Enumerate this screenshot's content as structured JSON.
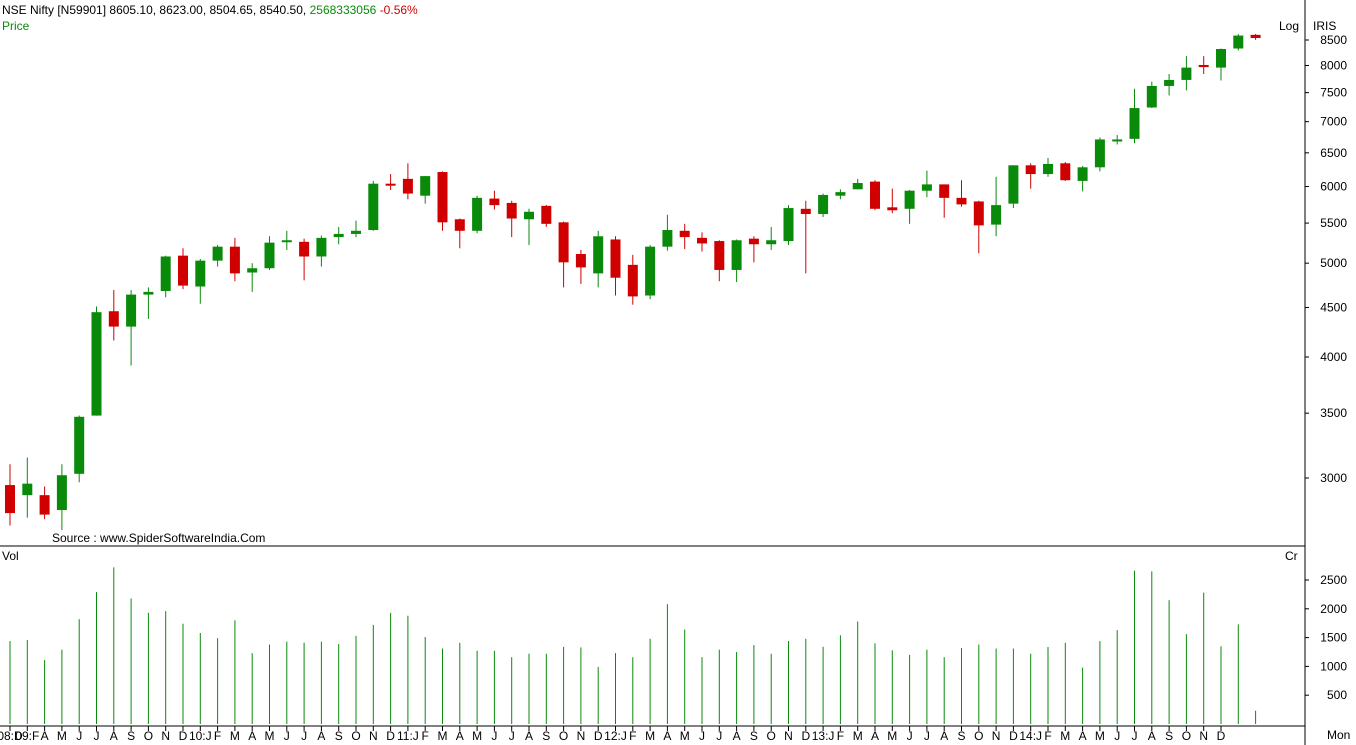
{
  "header": {
    "symbol": "NSE Nifty [N59901]",
    "ohlc": "8605.10, 8623.00, 8504.65, 8540.50,",
    "volume": "2568333056",
    "change": "-0.56%",
    "price_label": "Price",
    "log_label": "Log",
    "iris_label": "IRIS",
    "vol_label": "Vol",
    "cr_label": "Cr",
    "period_label": "Mon",
    "source": "Source : www.SpiderSoftwareIndia.Com"
  },
  "colors": {
    "up": "#0a8a0a",
    "down": "#d00000",
    "volume": "#0a8a0a",
    "axis": "#000000"
  },
  "chart_data": [
    {
      "type": "candlestick",
      "scale": "log",
      "ylim": [
        2600,
        8850
      ],
      "yticks": [
        3000,
        3500,
        4000,
        4500,
        5000,
        5500,
        6000,
        6500,
        7000,
        7500,
        8000,
        8500
      ],
      "xticklabels": [
        "08:D",
        "09:F",
        "A",
        "M",
        "J",
        "J",
        "A",
        "S",
        "O",
        "N",
        "D",
        "10:J",
        "F",
        "M",
        "A",
        "M",
        "J",
        "J",
        "A",
        "S",
        "O",
        "N",
        "D",
        "11:J",
        "F",
        "M",
        "A",
        "M",
        "J",
        "J",
        "A",
        "S",
        "O",
        "N",
        "D",
        "12:J",
        "F",
        "M",
        "A",
        "M",
        "J",
        "J",
        "A",
        "S",
        "O",
        "N",
        "D",
        "13:J",
        "F",
        "M",
        "A",
        "M",
        "J",
        "J",
        "A",
        "S",
        "O",
        "N",
        "D",
        "14:J",
        "F",
        "M",
        "A",
        "M",
        "J",
        "J",
        "A",
        "S",
        "O",
        "N",
        "D"
      ],
      "candles": [
        [
          2950,
          3100,
          2680,
          2760
        ],
        [
          2880,
          3150,
          2730,
          2960
        ],
        [
          2880,
          2940,
          2720,
          2750
        ],
        [
          2780,
          3100,
          2650,
          3020
        ],
        [
          3030,
          3480,
          2970,
          3470
        ],
        [
          3480,
          4510,
          3480,
          4450
        ],
        [
          4460,
          4690,
          4160,
          4300
        ],
        [
          4300,
          4690,
          3920,
          4640
        ],
        [
          4640,
          4720,
          4380,
          4670
        ],
        [
          4680,
          5090,
          4610,
          5080
        ],
        [
          5090,
          5180,
          4700,
          4740
        ],
        [
          4730,
          5050,
          4540,
          5030
        ],
        [
          5030,
          5220,
          4960,
          5200
        ],
        [
          5200,
          5310,
          4790,
          4880
        ],
        [
          4890,
          5000,
          4670,
          4940
        ],
        [
          4940,
          5330,
          4920,
          5250
        ],
        [
          5260,
          5400,
          5160,
          5280
        ],
        [
          5260,
          5300,
          4800,
          5080
        ],
        [
          5080,
          5340,
          4960,
          5310
        ],
        [
          5320,
          5450,
          5230,
          5360
        ],
        [
          5360,
          5530,
          5320,
          5400
        ],
        [
          5410,
          6080,
          5400,
          6040
        ],
        [
          6040,
          6180,
          5950,
          6030
        ],
        [
          6110,
          6340,
          5820,
          5900
        ],
        [
          5870,
          6150,
          5760,
          6150
        ],
        [
          6210,
          6220,
          5400,
          5510
        ],
        [
          5550,
          5560,
          5180,
          5400
        ],
        [
          5400,
          5870,
          5370,
          5840
        ],
        [
          5830,
          5940,
          5680,
          5740
        ],
        [
          5770,
          5800,
          5320,
          5560
        ],
        [
          5550,
          5690,
          5220,
          5650
        ],
        [
          5730,
          5740,
          5450,
          5490
        ],
        [
          5510,
          5520,
          4720,
          5010
        ],
        [
          5110,
          5160,
          4760,
          4950
        ],
        [
          4880,
          5400,
          4720,
          5330
        ],
        [
          5290,
          5330,
          4630,
          4830
        ],
        [
          4980,
          5100,
          4530,
          4620
        ],
        [
          4630,
          5220,
          4590,
          5200
        ],
        [
          5200,
          5610,
          5150,
          5410
        ],
        [
          5400,
          5490,
          5170,
          5320
        ],
        [
          5310,
          5380,
          5140,
          5240
        ],
        [
          5270,
          5280,
          4790,
          4920
        ],
        [
          4920,
          5290,
          4780,
          5280
        ],
        [
          5300,
          5330,
          5010,
          5230
        ],
        [
          5230,
          5450,
          5160,
          5280
        ],
        [
          5270,
          5740,
          5220,
          5700
        ],
        [
          5690,
          5800,
          4880,
          5620
        ],
        [
          5620,
          5900,
          5580,
          5880
        ],
        [
          5870,
          5960,
          5820,
          5920
        ],
        [
          5960,
          6110,
          5960,
          6050
        ],
        [
          6070,
          6090,
          5670,
          5690
        ],
        [
          5710,
          5970,
          5630,
          5670
        ],
        [
          5690,
          5950,
          5490,
          5940
        ],
        [
          5940,
          6230,
          5850,
          6030
        ],
        [
          6030,
          6030,
          5570,
          5840
        ],
        [
          5840,
          6090,
          5720,
          5750
        ],
        [
          5790,
          5800,
          5120,
          5470
        ],
        [
          5480,
          6140,
          5330,
          5740
        ],
        [
          5760,
          6310,
          5700,
          6310
        ],
        [
          6310,
          6340,
          5970,
          6180
        ],
        [
          6180,
          6420,
          6140,
          6330
        ],
        [
          6340,
          6360,
          6080,
          6090
        ],
        [
          6080,
          6300,
          5930,
          6280
        ],
        [
          6280,
          6740,
          6220,
          6710
        ],
        [
          6700,
          6780,
          6630,
          6710
        ],
        [
          6720,
          7570,
          6650,
          7230
        ],
        [
          7240,
          7700,
          7230,
          7620
        ],
        [
          7620,
          7840,
          7450,
          7730
        ],
        [
          7730,
          8180,
          7540,
          7960
        ],
        [
          8010,
          8180,
          7840,
          7970
        ],
        [
          7960,
          8330,
          7720,
          8320
        ],
        [
          8330,
          8620,
          8290,
          8590
        ],
        [
          8605,
          8623,
          8504,
          8540
        ]
      ]
    },
    {
      "type": "bar",
      "ylabel": "Cr",
      "ylim": [
        0,
        2800
      ],
      "yticks": [
        500,
        1000,
        1500,
        2000,
        2500
      ],
      "values": [
        1440,
        1460,
        1110,
        1290,
        1820,
        2290,
        2720,
        2180,
        1930,
        1960,
        1740,
        1580,
        1490,
        1800,
        1230,
        1380,
        1430,
        1410,
        1430,
        1390,
        1530,
        1720,
        1930,
        1880,
        1510,
        1310,
        1410,
        1270,
        1270,
        1160,
        1220,
        1220,
        1340,
        1330,
        990,
        1230,
        1160,
        1480,
        2080,
        1640,
        1160,
        1290,
        1250,
        1370,
        1220,
        1440,
        1480,
        1340,
        1540,
        1780,
        1400,
        1280,
        1200,
        1290,
        1160,
        1320,
        1380,
        1310,
        1310,
        1220,
        1340,
        1410,
        980,
        1440,
        1630,
        2660,
        2650,
        2150,
        1560,
        2280,
        1350,
        1730,
        230
      ]
    }
  ]
}
